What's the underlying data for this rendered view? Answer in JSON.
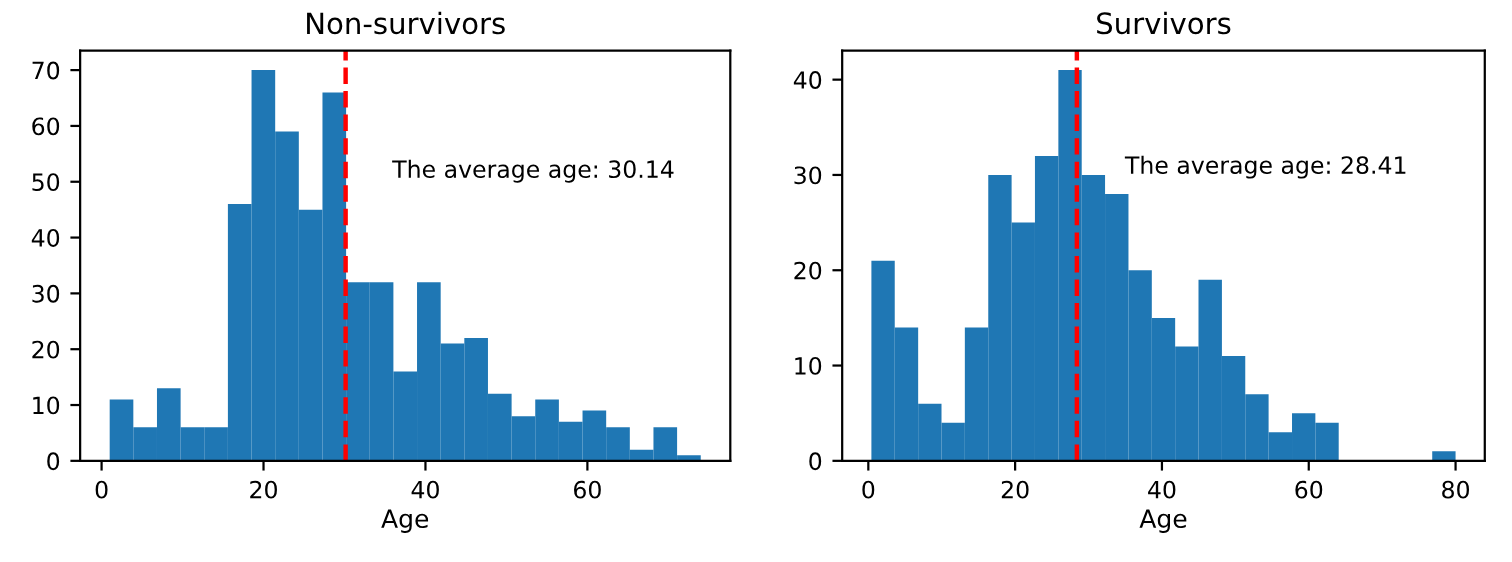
{
  "chart_data": [
    {
      "type": "histogram",
      "title": "Non-survivors",
      "xlabel": "Age",
      "bins": [
        1,
        3.92,
        6.84,
        9.76,
        12.68,
        15.6,
        18.52,
        21.44,
        24.36,
        27.28,
        30.2,
        33.12,
        36.04,
        38.96,
        41.88,
        44.8,
        47.72,
        50.64,
        53.56,
        56.48,
        59.4,
        62.32,
        65.24,
        68.16,
        71.08,
        74
      ],
      "values": [
        11,
        6,
        13,
        6,
        6,
        46,
        70,
        59,
        45,
        66,
        32,
        32,
        16,
        32,
        21,
        22,
        12,
        8,
        11,
        7,
        9,
        6,
        2,
        6,
        1
      ],
      "color": "#1f77b4",
      "xlim": [
        -2.65,
        77.65
      ],
      "xticks": [
        0,
        20,
        40,
        60
      ],
      "ylim": [
        0,
        73.5
      ],
      "yticks": [
        0,
        10,
        20,
        30,
        40,
        50,
        60,
        70
      ],
      "ref_lines": [
        {
          "axis": "x",
          "value": 30.14,
          "color": "#ff0000",
          "line_style": "dashed"
        }
      ],
      "annotations": [
        "The average age: 30.14"
      ],
      "grid": false,
      "legend": false
    },
    {
      "type": "histogram",
      "title": "Survivors",
      "xlabel": "Age",
      "bins": [
        0.42,
        3.6,
        6.79,
        9.97,
        13.15,
        16.34,
        19.52,
        22.7,
        25.89,
        29.07,
        32.25,
        35.44,
        38.62,
        41.8,
        44.98,
        48.17,
        51.35,
        54.53,
        57.72,
        60.9,
        64.08,
        67.27,
        70.45,
        73.63,
        76.82,
        80
      ],
      "values": [
        21,
        14,
        6,
        4,
        14,
        30,
        25,
        32,
        41,
        30,
        28,
        20,
        15,
        12,
        19,
        11,
        7,
        3,
        5,
        4,
        0,
        0,
        0,
        0,
        1
      ],
      "color": "#1f77b4",
      "xlim": [
        -3.56,
        83.98
      ],
      "xticks": [
        0,
        20,
        40,
        60,
        80
      ],
      "ylim": [
        0,
        43.05
      ],
      "yticks": [
        0,
        10,
        20,
        30,
        40
      ],
      "ref_lines": [
        {
          "axis": "x",
          "value": 28.41,
          "color": "#ff0000",
          "line_style": "dashed"
        }
      ],
      "annotations": [
        "The average age: 28.41"
      ],
      "grid": false,
      "legend": false
    }
  ]
}
